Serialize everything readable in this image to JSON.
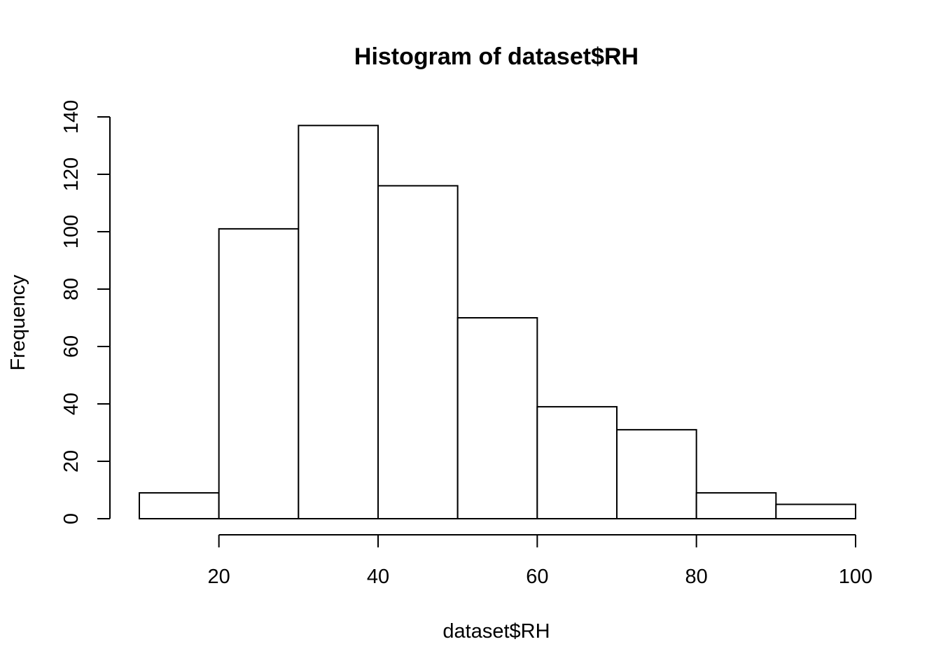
{
  "chart_data": {
    "type": "bar",
    "title": "Histogram of dataset$RH",
    "xlabel": "dataset$RH",
    "ylabel": "Frequency",
    "bins": [
      {
        "start": 10,
        "end": 20,
        "count": 9
      },
      {
        "start": 20,
        "end": 30,
        "count": 101
      },
      {
        "start": 30,
        "end": 40,
        "count": 137
      },
      {
        "start": 40,
        "end": 50,
        "count": 116
      },
      {
        "start": 50,
        "end": 60,
        "count": 70
      },
      {
        "start": 60,
        "end": 70,
        "count": 39
      },
      {
        "start": 70,
        "end": 80,
        "count": 31
      },
      {
        "start": 80,
        "end": 90,
        "count": 9
      },
      {
        "start": 90,
        "end": 100,
        "count": 5
      }
    ],
    "xlim": [
      10,
      100
    ],
    "ylim": [
      0,
      140
    ],
    "x_ticks": [
      "20",
      "40",
      "60",
      "80",
      "100"
    ],
    "y_ticks": [
      "0",
      "20",
      "40",
      "60",
      "80",
      "100",
      "120",
      "140"
    ],
    "grid": false,
    "legend": "none",
    "colors": {
      "bar_fill": "#ffffff",
      "bar_stroke": "#000000",
      "text": "#000000"
    }
  }
}
